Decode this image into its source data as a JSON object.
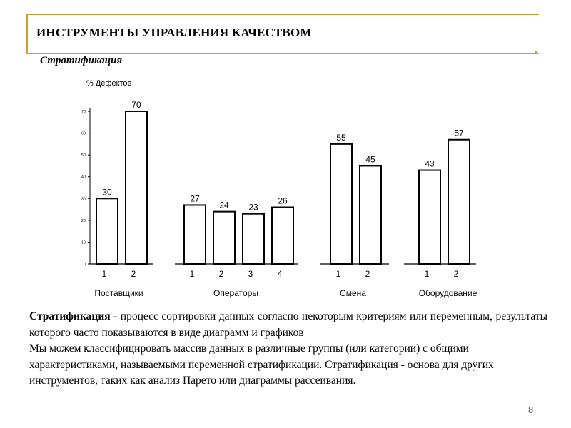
{
  "slide": {
    "title": "ИНСТРУМЕНТЫ УПРАВЛЕНИЯ КАЧЕСТВОМ",
    "subtitle": "Стратификация",
    "page_number": "8",
    "accent_color": "#c9a227"
  },
  "chart_data": {
    "type": "bar",
    "ylabel": "% Дефектов",
    "ylim": [
      0,
      70
    ],
    "yticks": [
      0,
      10,
      20,
      30,
      40,
      50,
      60,
      70
    ],
    "groups": [
      {
        "name": "Поставщики",
        "categories": [
          "1",
          "2"
        ],
        "values": [
          30,
          70
        ]
      },
      {
        "name": "Операторы",
        "categories": [
          "1",
          "2",
          "3",
          "4"
        ],
        "values": [
          27,
          24,
          23,
          26
        ]
      },
      {
        "name": "Смена",
        "categories": [
          "1",
          "2"
        ],
        "values": [
          55,
          45
        ]
      },
      {
        "name": "Оборудование",
        "categories": [
          "1",
          "2"
        ],
        "values": [
          43,
          57
        ]
      }
    ]
  },
  "text": {
    "term": "Стратификация -",
    "definition": " процесс сортировки данных согласно некоторым критериям или переменным, результаты которого часто показываются в виде диаграмм и графиков",
    "paragraph2": "Мы можем классифицировать массив данных в различные группы (или категории) с общими характеристиками, называемыми переменной стратификации. Стратификация - основа для других инструментов, таких как анализ Парето или диаграммы рассеивания."
  }
}
